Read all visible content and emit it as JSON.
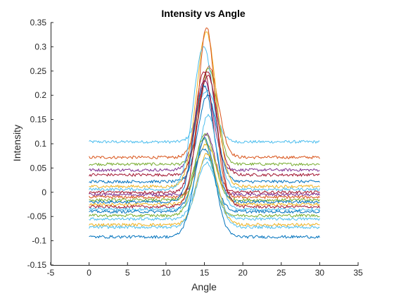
{
  "chart_data": {
    "type": "line",
    "title": "Intensity vs Angle",
    "xlabel": "Angle",
    "ylabel": "Intensity",
    "xlim": [
      -5,
      35
    ],
    "ylim": [
      -0.15,
      0.35
    ],
    "xticks": [
      "-5",
      "0",
      "5",
      "10",
      "15",
      "20",
      "25",
      "30",
      "35"
    ],
    "yticks": [
      "-0.15",
      "-0.1",
      "-0.05",
      "0",
      "0.05",
      "0.1",
      "0.15",
      "0.2",
      "0.25",
      "0.3",
      "0.35"
    ],
    "grid": false,
    "legend": "none",
    "x_range": [
      0,
      30
    ],
    "peak_center": 15.2,
    "series": [
      {
        "baseline": 0.104,
        "peak": 0.21,
        "color": "#4DBEEE"
      },
      {
        "baseline": 0.072,
        "peak": 0.26,
        "color": "#D95319"
      },
      {
        "baseline": 0.058,
        "peak": 0.255,
        "color": "#77AC30"
      },
      {
        "baseline": 0.046,
        "peak": 0.23,
        "color": "#7E2F8E"
      },
      {
        "baseline": 0.036,
        "peak": 0.24,
        "color": "#A2142F"
      },
      {
        "baseline": 0.022,
        "peak": 0.2,
        "color": "#0072BD"
      },
      {
        "baseline": 0.012,
        "peak": 0.33,
        "color": "#EDB120"
      },
      {
        "baseline": 0.006,
        "peak": 0.3,
        "color": "#4DBEEE"
      },
      {
        "baseline": 0.0,
        "peak": 0.25,
        "color": "#A2142F"
      },
      {
        "baseline": -0.005,
        "peak": 0.12,
        "color": "#7E2F8E"
      },
      {
        "baseline": -0.01,
        "peak": 0.34,
        "color": "#D95319"
      },
      {
        "baseline": -0.016,
        "peak": 0.12,
        "color": "#77AC30"
      },
      {
        "baseline": -0.02,
        "peak": 0.22,
        "color": "#0072BD"
      },
      {
        "baseline": -0.025,
        "peak": 0.1,
        "color": "#EDB120"
      },
      {
        "baseline": -0.03,
        "peak": 0.25,
        "color": "#A2142F"
      },
      {
        "baseline": -0.035,
        "peak": 0.16,
        "color": "#4DBEEE"
      },
      {
        "baseline": -0.04,
        "peak": 0.09,
        "color": "#0072BD"
      },
      {
        "baseline": -0.048,
        "peak": 0.11,
        "color": "#77AC30"
      },
      {
        "baseline": -0.055,
        "peak": 0.07,
        "color": "#4DBEEE"
      },
      {
        "baseline": -0.067,
        "peak": 0.08,
        "color": "#EDB120"
      },
      {
        "baseline": -0.072,
        "peak": 0.06,
        "color": "#4DBEEE"
      },
      {
        "baseline": -0.092,
        "peak": 0.11,
        "color": "#0072BD"
      }
    ]
  }
}
